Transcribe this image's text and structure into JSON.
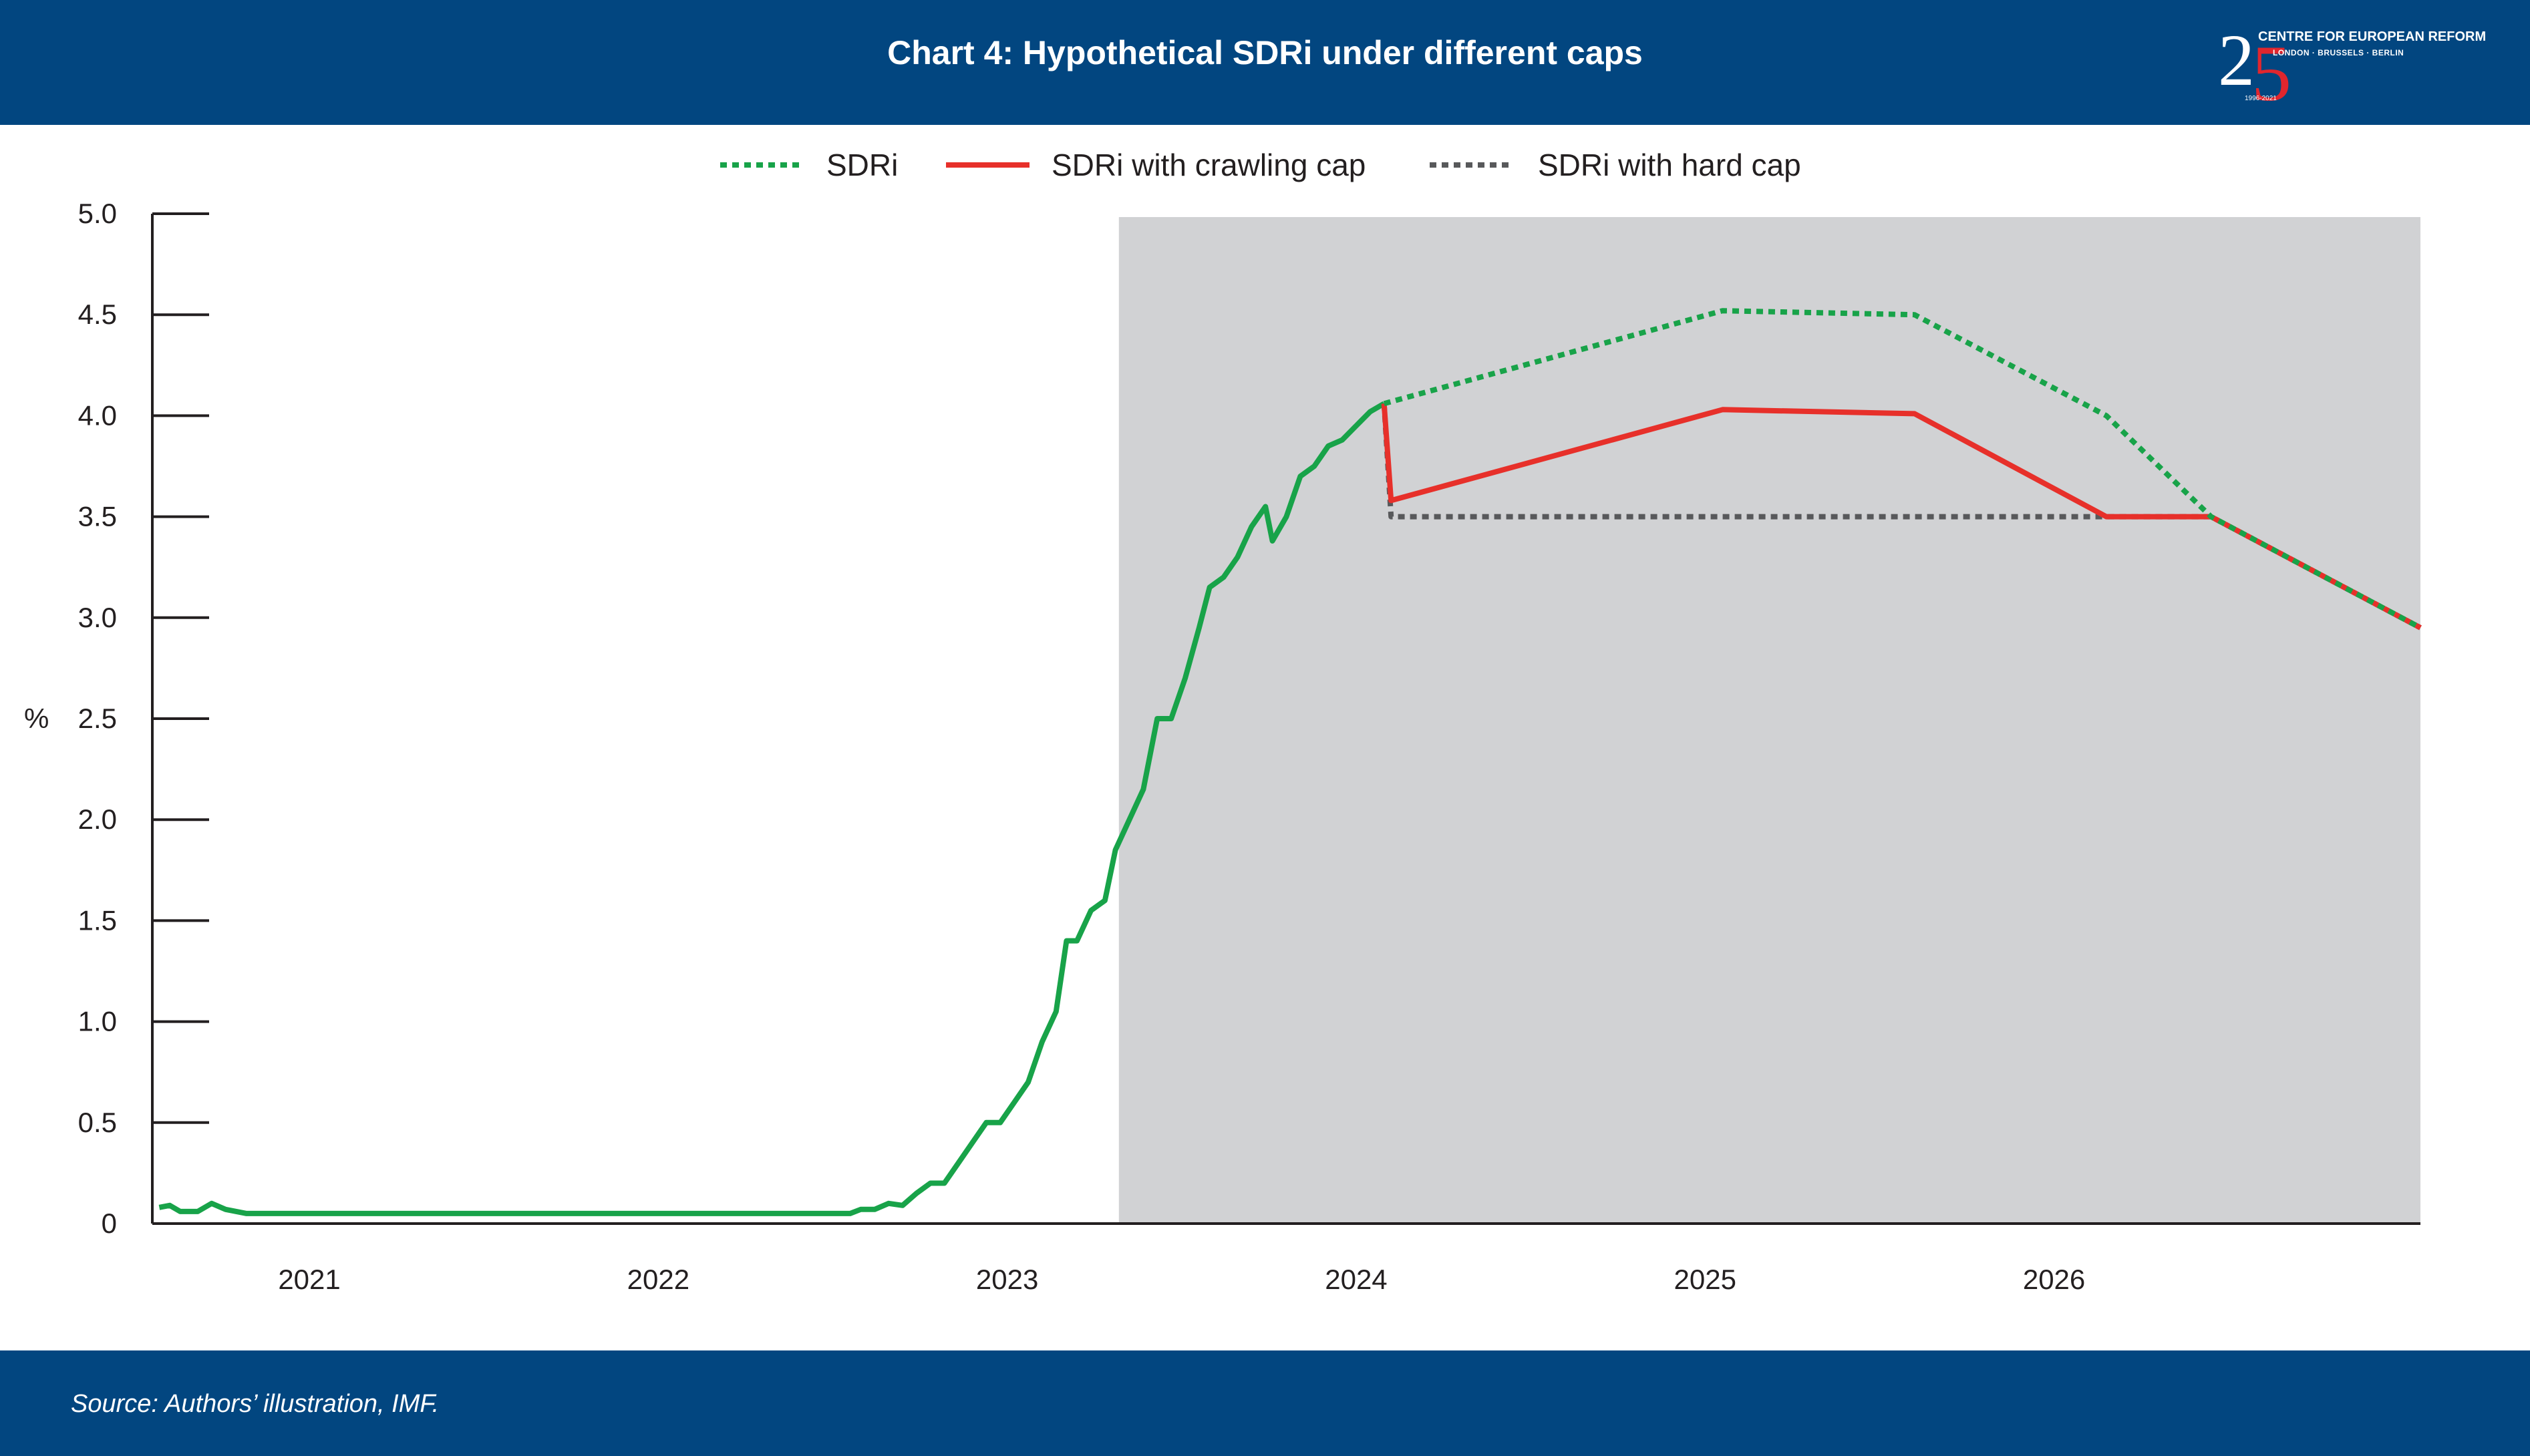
{
  "header": {
    "title": "Chart 4: Hypothetical SDRi under different caps",
    "logo": {
      "number": "2",
      "number_accent": "5",
      "org": "CENTRE FOR EUROPEAN REFORM",
      "cities": "LONDON · BRUSSELS · BERLIN",
      "years": "1996-2021"
    }
  },
  "footer": {
    "source": "Source: Authors’ illustration, IMF."
  },
  "colors": {
    "brand": "#024680",
    "sdri": "#18a349",
    "crawling_cap": "#e7302a",
    "hard_cap": "#58595b",
    "forecast_shade": "#d1d2d4"
  },
  "chart_data": {
    "type": "line",
    "title": "Chart 4: Hypothetical SDRi under different caps",
    "xlabel": "",
    "ylabel": "%",
    "xlim": [
      2020.55,
      2027.05
    ],
    "ylim": [
      0,
      5
    ],
    "y_ticks": [
      0,
      0.5,
      1.0,
      1.5,
      2.0,
      2.5,
      3.0,
      3.5,
      4.0,
      4.5,
      5.0
    ],
    "y_tick_labels": [
      "0",
      "0.5",
      "1.0",
      "1.5",
      "2.0",
      "2.5",
      "3.0",
      "3.5",
      "4.0",
      "4.5",
      "5.0"
    ],
    "x_tick_labels": [
      {
        "label": "2021",
        "x": 2021.0
      },
      {
        "label": "2022",
        "x": 2022.0
      },
      {
        "label": "2023",
        "x": 2023.0
      },
      {
        "label": "2024",
        "x": 2024.0
      },
      {
        "label": "2025",
        "x": 2025.0
      },
      {
        "label": "2026",
        "x": 2026.0
      }
    ],
    "forecast_region": [
      2023.32,
      2027.05
    ],
    "legend": {
      "placement": "top-center"
    },
    "series": [
      {
        "name": "SDRi",
        "style": "solid",
        "points": [
          [
            2020.57,
            0.08
          ],
          [
            2020.6,
            0.09
          ],
          [
            2020.63,
            0.06
          ],
          [
            2020.68,
            0.06
          ],
          [
            2020.72,
            0.1
          ],
          [
            2020.76,
            0.07
          ],
          [
            2020.82,
            0.05
          ],
          [
            2021.0,
            0.05
          ],
          [
            2021.3,
            0.05
          ],
          [
            2021.6,
            0.05
          ],
          [
            2021.9,
            0.05
          ],
          [
            2022.1,
            0.05
          ],
          [
            2022.3,
            0.05
          ],
          [
            2022.55,
            0.05
          ],
          [
            2022.58,
            0.07
          ],
          [
            2022.62,
            0.07
          ],
          [
            2022.66,
            0.1
          ],
          [
            2022.7,
            0.09
          ],
          [
            2022.74,
            0.15
          ],
          [
            2022.78,
            0.2
          ],
          [
            2022.82,
            0.2
          ],
          [
            2022.86,
            0.3
          ],
          [
            2022.9,
            0.4
          ],
          [
            2022.94,
            0.5
          ],
          [
            2022.98,
            0.5
          ],
          [
            2023.02,
            0.6
          ],
          [
            2023.06,
            0.7
          ],
          [
            2023.1,
            0.9
          ],
          [
            2023.14,
            1.05
          ],
          [
            2023.17,
            1.4
          ],
          [
            2023.2,
            1.4
          ],
          [
            2023.24,
            1.55
          ],
          [
            2023.28,
            1.6
          ],
          [
            2023.31,
            1.85
          ],
          [
            2023.35,
            2.0
          ],
          [
            2023.39,
            2.15
          ],
          [
            2023.43,
            2.5
          ],
          [
            2023.47,
            2.5
          ],
          [
            2023.51,
            2.7
          ],
          [
            2023.55,
            2.95
          ],
          [
            2023.58,
            3.15
          ],
          [
            2023.62,
            3.2
          ],
          [
            2023.66,
            3.3
          ],
          [
            2023.7,
            3.45
          ],
          [
            2023.74,
            3.55
          ],
          [
            2023.76,
            3.38
          ],
          [
            2023.8,
            3.5
          ],
          [
            2023.84,
            3.7
          ],
          [
            2023.88,
            3.75
          ],
          [
            2023.92,
            3.85
          ],
          [
            2023.96,
            3.88
          ],
          [
            2024.0,
            3.95
          ],
          [
            2024.04,
            4.02
          ],
          [
            2024.08,
            4.06
          ]
        ]
      },
      {
        "name": "SDRi",
        "style": "dotted",
        "points": [
          [
            2024.08,
            4.06
          ],
          [
            2025.05,
            4.52
          ],
          [
            2025.6,
            4.5
          ],
          [
            2026.15,
            4.0
          ],
          [
            2026.45,
            3.5
          ],
          [
            2027.05,
            2.95
          ]
        ]
      },
      {
        "name": "SDRi with crawling cap",
        "style": "solid",
        "points": [
          [
            2024.08,
            4.06
          ],
          [
            2024.1,
            3.58
          ],
          [
            2025.05,
            4.03
          ],
          [
            2025.6,
            4.01
          ],
          [
            2026.15,
            3.5
          ],
          [
            2026.45,
            3.5
          ],
          [
            2027.05,
            2.95
          ]
        ]
      },
      {
        "name": "SDRi with hard cap",
        "style": "dotted",
        "points": [
          [
            2024.08,
            4.06
          ],
          [
            2024.1,
            3.5
          ],
          [
            2026.45,
            3.5
          ],
          [
            2027.05,
            2.95
          ]
        ]
      }
    ]
  }
}
